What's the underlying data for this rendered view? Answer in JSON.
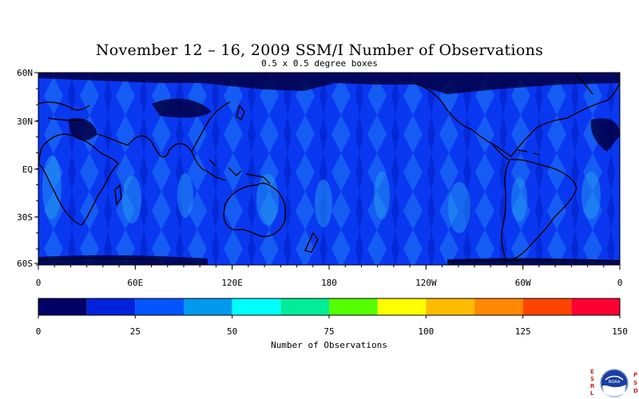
{
  "chart_data": {
    "type": "heatmap",
    "title": "November 12 – 16, 2009 SSM/I Number of Observations",
    "subtitle": "0.5 x 0.5 degree boxes",
    "projection": "cylindrical equidistant, latitude 60S–60N, longitude 0–360",
    "y_ticks": [
      "60N",
      "30N",
      "EQ",
      "30S",
      "60S"
    ],
    "x_ticks": [
      "0",
      "60E",
      "120E",
      "180",
      "120W",
      "60W",
      "0"
    ],
    "colorbar": {
      "label": "Number of Observations",
      "ticks": [
        "0",
        "25",
        "50",
        "75",
        "100",
        "125",
        "150"
      ],
      "range": [
        0,
        150
      ],
      "bin_width": 12.5,
      "colors": [
        "#000066",
        "#0022dd",
        "#0055ff",
        "#0099ee",
        "#00ffff",
        "#00ee99",
        "#55ff00",
        "#ffff00",
        "#ffbb00",
        "#ff8800",
        "#ff4400",
        "#ff0033"
      ]
    },
    "typical_values": {
      "land_and_ice_masked": "black",
      "ocean_typical": "25–37",
      "swath_overlap_peaks": "37–50",
      "swath_gaps": "12–25"
    }
  },
  "logo": {
    "left_letters": [
      "E",
      "S",
      "R",
      "L"
    ],
    "right_letters": [
      "P",
      "S",
      "D"
    ],
    "emblem_text": "NOAA"
  }
}
